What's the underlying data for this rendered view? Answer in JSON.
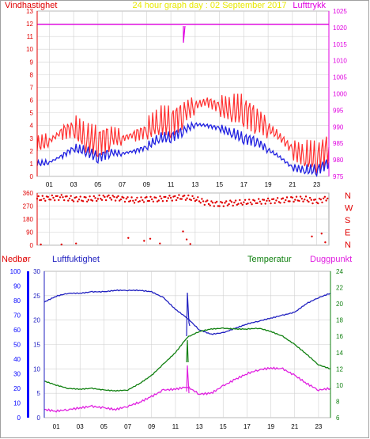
{
  "title": "24 hour graph day : 02 September 2017",
  "colors": {
    "wind": "#e00000",
    "gust": "#ff4040",
    "avg_wind": "#2020e0",
    "pressure": "#e000e0",
    "winddir": "#e00000",
    "humidity": "#2020c0",
    "temperature": "#108010",
    "dewpoint": "#e020e0",
    "rain": "#0000ff",
    "title": "#e8e800",
    "grid": "#d0d0d0",
    "axis": "#000000"
  },
  "chart_data": [
    {
      "type": "line",
      "name": "wind-pressure",
      "left_label": "Vindhastighet",
      "right_label": "Lufttrykk",
      "x_ticks": [
        "01",
        "03",
        "05",
        "07",
        "09",
        "11",
        "13",
        "15",
        "17",
        "19",
        "21",
        "23"
      ],
      "y_left_ticks": [
        "0",
        "1",
        "2",
        "3",
        "4",
        "5",
        "6",
        "7",
        "8",
        "9",
        "10",
        "11",
        "12",
        "13"
      ],
      "y_right_ticks": [
        "975",
        "980",
        "985",
        "990",
        "995",
        "1000",
        "1005",
        "1010",
        "1015",
        "1020",
        "1025"
      ],
      "ylim_left": [
        0,
        13
      ],
      "ylim_right": [
        975,
        1025
      ],
      "x": [
        0,
        1,
        2,
        3,
        4,
        5,
        6,
        7,
        8,
        9,
        10,
        11,
        12,
        13,
        14,
        15,
        16,
        17,
        18,
        19,
        20,
        21,
        22,
        23,
        24
      ],
      "series": [
        {
          "key": "gust",
          "values": [
            2.5,
            2.8,
            3.5,
            3.8,
            3.0,
            2.8,
            3.2,
            3.0,
            3.3,
            3.6,
            4.3,
            4.3,
            5.0,
            5.6,
            5.9,
            5.5,
            5.2,
            5.2,
            4.6,
            3.8,
            3.1,
            2.1,
            1.6,
            1.5,
            2.3
          ]
        },
        {
          "key": "avg_wind",
          "values": [
            1.0,
            1.1,
            1.6,
            2.2,
            2.0,
            1.5,
            1.9,
            1.8,
            2.0,
            2.3,
            3.0,
            3.1,
            3.6,
            4.1,
            4.0,
            3.8,
            3.4,
            3.0,
            2.8,
            2.1,
            1.5,
            0.7,
            0.5,
            0.5,
            1.1
          ]
        },
        {
          "key": "pressure",
          "values": [
            1021,
            1021,
            1021,
            1021,
            1021,
            1021,
            1021,
            1021,
            1021,
            1021,
            1021,
            1021,
            1021,
            1021,
            1021,
            1021,
            1021,
            1021,
            1021,
            1021,
            1021,
            1021,
            1021,
            1021,
            1021
          ]
        }
      ]
    },
    {
      "type": "scatter",
      "name": "wind-direction",
      "x_ticks": [
        "01",
        "03",
        "05",
        "07",
        "09",
        "11",
        "13",
        "15",
        "17",
        "19",
        "21",
        "23"
      ],
      "y_ticks": [
        "0",
        "90",
        "180",
        "270",
        "360"
      ],
      "compass": [
        "N",
        "W",
        "S",
        "E",
        "N"
      ],
      "ylim": [
        0,
        360
      ],
      "series": [
        {
          "key": "main_band",
          "values": [
            320,
            325,
            330,
            320,
            315,
            325,
            330,
            320,
            310,
            315,
            320,
            325,
            330,
            320,
            290,
            285,
            290,
            295,
            300,
            305,
            310,
            315,
            320,
            300,
            330
          ]
        }
      ]
    },
    {
      "type": "line",
      "name": "temp-humidity",
      "labels": {
        "rain": "Nedbør",
        "humidity": "Luftfuktighet",
        "temperature": "Temperatur",
        "dewpoint": "Duggpunkt"
      },
      "x_ticks": [
        "01",
        "03",
        "05",
        "07",
        "09",
        "11",
        "13",
        "15",
        "17",
        "19",
        "21",
        "23"
      ],
      "y_humidity_ticks": [
        "0",
        "10",
        "20",
        "30",
        "40",
        "50",
        "60",
        "70",
        "80",
        "90",
        "100"
      ],
      "y_rain_ticks": [
        "0",
        "5",
        "10",
        "15",
        "20",
        "25",
        "30"
      ],
      "y_temp_ticks": [
        "6",
        "8",
        "10",
        "12",
        "14",
        "16",
        "18",
        "20",
        "22",
        "24"
      ],
      "ylim_humidity": [
        0,
        100
      ],
      "ylim_rain": [
        0,
        30
      ],
      "ylim_temp": [
        6,
        24
      ],
      "x": [
        0,
        1,
        2,
        3,
        4,
        5,
        6,
        7,
        8,
        9,
        10,
        11,
        12,
        13,
        14,
        15,
        16,
        17,
        18,
        19,
        20,
        21,
        22,
        23,
        24
      ],
      "series": [
        {
          "key": "humidity",
          "values": [
            79,
            83,
            85,
            85,
            86,
            86,
            87,
            87,
            87,
            86,
            82,
            74,
            68,
            60,
            57,
            58,
            61,
            64,
            66,
            68,
            70,
            72,
            78,
            82,
            85
          ]
        },
        {
          "key": "temperature",
          "values": [
            10.5,
            10.0,
            9.6,
            9.5,
            9.6,
            9.4,
            9.3,
            9.4,
            10.2,
            11.2,
            12.6,
            14.0,
            15.9,
            16.6,
            16.9,
            17.0,
            16.9,
            16.9,
            17.0,
            16.6,
            16.0,
            15.0,
            13.8,
            12.5,
            12.0
          ]
        },
        {
          "key": "dewpoint",
          "values": [
            7.0,
            6.8,
            7.0,
            7.2,
            7.4,
            7.2,
            7.0,
            7.4,
            7.9,
            8.6,
            9.4,
            9.5,
            9.8,
            8.9,
            9.0,
            9.9,
            10.7,
            11.4,
            11.9,
            12.1,
            12.0,
            11.2,
            10.2,
            9.4,
            9.6
          ]
        }
      ]
    }
  ]
}
